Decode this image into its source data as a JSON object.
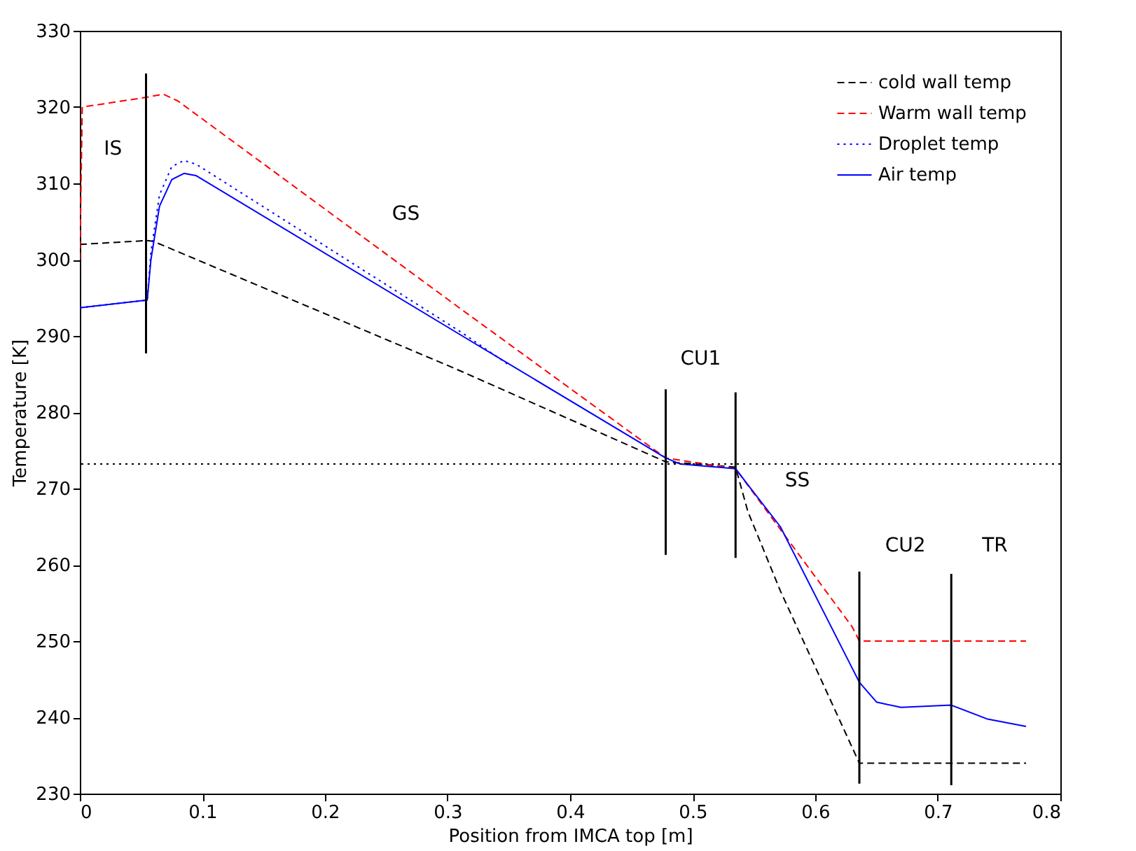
{
  "chart_data": {
    "type": "line",
    "xlabel": "Position from IMCA top [m]",
    "ylabel": "Temperature [K]",
    "xlim": [
      0,
      0.8
    ],
    "xticks": [
      0,
      0.1,
      0.2,
      0.3,
      0.4,
      0.5,
      0.6,
      0.7,
      0.8
    ],
    "ylim": [
      230,
      330
    ],
    "yticks": [
      230,
      240,
      250,
      260,
      270,
      280,
      290,
      300,
      310,
      320,
      330
    ],
    "grid": false,
    "legend": "top right",
    "series": [
      {
        "name": "cold wall temp",
        "color": "#000000",
        "line_style": "dashed",
        "x": [
          0,
          0.055,
          0.06,
          0.305,
          0.478,
          0.535,
          0.545,
          0.5715,
          0.636,
          0.772
        ],
        "values": [
          302,
          302.5,
          302.4,
          285.8,
          273.5,
          272.8,
          267,
          256.6,
          234,
          234
        ]
      },
      {
        "name": "Warm wall temp",
        "color": "#ff0000",
        "line_style": "dashed",
        "x": [
          0,
          0.002,
          0.055,
          0.068,
          0.08,
          0.312,
          0.478,
          0.535,
          0.63,
          0.636,
          0.772
        ],
        "values": [
          300,
          320,
          321.3,
          321.7,
          320.8,
          293.4,
          274,
          272.6,
          251.9,
          250,
          250
        ]
      },
      {
        "name": "Droplet temp",
        "color": "#0000ff",
        "line_style": "dotted",
        "x": [
          0,
          0.055,
          0.058,
          0.065,
          0.075,
          0.085,
          0.095,
          0.312,
          0.35
        ],
        "values": [
          293.7,
          294.7,
          301,
          308.5,
          312.2,
          313,
          312.5,
          290.4,
          286.2
        ]
      },
      {
        "name": "Air temp",
        "color": "#0000ff",
        "line_style": "solid",
        "x": [
          0,
          0.055,
          0.058,
          0.065,
          0.075,
          0.085,
          0.095,
          0.312,
          0.478,
          0.49,
          0.535,
          0.545,
          0.5715,
          0.636,
          0.65,
          0.67,
          0.711,
          0.74,
          0.772
        ],
        "values": [
          293.7,
          294.7,
          300,
          307,
          310.5,
          311.3,
          311,
          290,
          274,
          273.2,
          272.6,
          270.5,
          265,
          244.6,
          242,
          241.3,
          241.6,
          239.8,
          238.8
        ]
      },
      {
        "color": "#000000",
        "line_style": "solid",
        "x": [
          0.054,
          0.054
        ],
        "values": [
          287.7,
          324.4
        ]
      },
      {
        "color": "#000000",
        "line_style": "solid",
        "x": [
          0.478,
          0.478
        ],
        "values": [
          261.3,
          283
        ]
      },
      {
        "color": "#000000",
        "line_style": "solid",
        "x": [
          0.535,
          0.535
        ],
        "values": [
          260.9,
          282.6
        ]
      },
      {
        "color": "#000000",
        "line_style": "solid",
        "x": [
          0.636,
          0.636
        ],
        "values": [
          231.3,
          259.1
        ]
      },
      {
        "color": "#000000",
        "line_style": "solid",
        "x": [
          0.711,
          0.711
        ],
        "values": [
          231.1,
          258.8
        ]
      }
    ],
    "ref_lines": [
      {
        "axis": "y",
        "value": 273.2,
        "color": "#000000",
        "line_style": "dotted"
      }
    ],
    "annotations": [
      "IS",
      "GS",
      "CU1",
      "SS",
      "CU2",
      "TR"
    ]
  }
}
